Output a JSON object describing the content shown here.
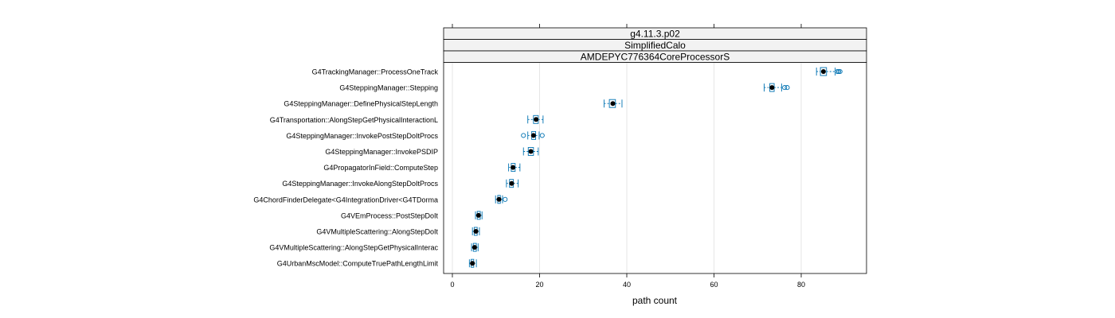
{
  "chart_data": {
    "type": "box",
    "strips": [
      "g4.11.3.p02",
      "SimplifiedCalo",
      "AMDEPYC776364CoreProcessorS"
    ],
    "xlabel": "path count",
    "xlim": [
      -2,
      95
    ],
    "xticks": [
      0,
      20,
      40,
      60,
      80
    ],
    "grid": "vertical",
    "colors": {
      "box": "#0072B2",
      "frame": "#000000",
      "strip_bg": "#F2F2F2",
      "grid": "#E6E6E6"
    },
    "categories": [
      "G4TrackingManager::ProcessOneTrack",
      "G4SteppingManager::Stepping",
      "G4SteppingManager::DefinePhysicalStepLength",
      "G4Transportation::AlongStepGetPhysicalInteractionL",
      "G4SteppingManager::InvokePostStepDoItProcs",
      "G4SteppingManager::InvokePSDIP",
      "G4PropagatorInField::ComputeStep",
      "G4SteppingManager::InvokeAlongStepDoItProcs",
      "G4ChordFinderDelegate<G4IntegrationDriver<G4TDorma",
      "G4VEmProcess::PostStepDoIt",
      "G4VMultipleScattering::AlongStepDoIt",
      "G4VMultipleScattering::AlongStepGetPhysicalInterac",
      "G4UrbanMscModel::ComputeTruePathLengthLimit"
    ],
    "boxes": [
      {
        "min": 83.5,
        "q1": 84.4,
        "median": 85.1,
        "q3": 85.8,
        "max": 87.8,
        "outliers": [
          88.3,
          88.6,
          88.9
        ]
      },
      {
        "min": 71.5,
        "q1": 72.8,
        "median": 73.3,
        "q3": 73.8,
        "max": 75.5,
        "outliers": [
          76.2,
          76.8
        ]
      },
      {
        "min": 34.8,
        "q1": 36.0,
        "median": 36.8,
        "q3": 37.4,
        "max": 38.9,
        "outliers": []
      },
      {
        "min": 17.3,
        "q1": 18.6,
        "median": 19.2,
        "q3": 19.7,
        "max": 20.8,
        "outliers": []
      },
      {
        "min": 17.3,
        "q1": 18.2,
        "median": 18.6,
        "q3": 19.1,
        "max": 19.9,
        "outliers": [
          16.3,
          20.6
        ]
      },
      {
        "min": 16.3,
        "q1": 17.4,
        "median": 18.0,
        "q3": 18.6,
        "max": 19.7,
        "outliers": []
      },
      {
        "min": 12.9,
        "q1": 13.5,
        "median": 13.9,
        "q3": 14.4,
        "max": 15.5,
        "outliers": []
      },
      {
        "min": 12.4,
        "q1": 13.1,
        "median": 13.6,
        "q3": 14.0,
        "max": 15.1,
        "outliers": []
      },
      {
        "min": 9.9,
        "q1": 10.4,
        "median": 10.7,
        "q3": 11.0,
        "max": 11.5,
        "outliers": [
          12.1
        ]
      },
      {
        "min": 5.3,
        "q1": 5.7,
        "median": 6.0,
        "q3": 6.4,
        "max": 6.8,
        "outliers": []
      },
      {
        "min": 4.6,
        "q1": 5.0,
        "median": 5.4,
        "q3": 5.7,
        "max": 6.2,
        "outliers": []
      },
      {
        "min": 4.4,
        "q1": 4.8,
        "median": 5.1,
        "q3": 5.5,
        "max": 5.9,
        "outliers": []
      },
      {
        "min": 3.9,
        "q1": 4.3,
        "median": 4.6,
        "q3": 4.9,
        "max": 5.5,
        "outliers": []
      }
    ]
  }
}
